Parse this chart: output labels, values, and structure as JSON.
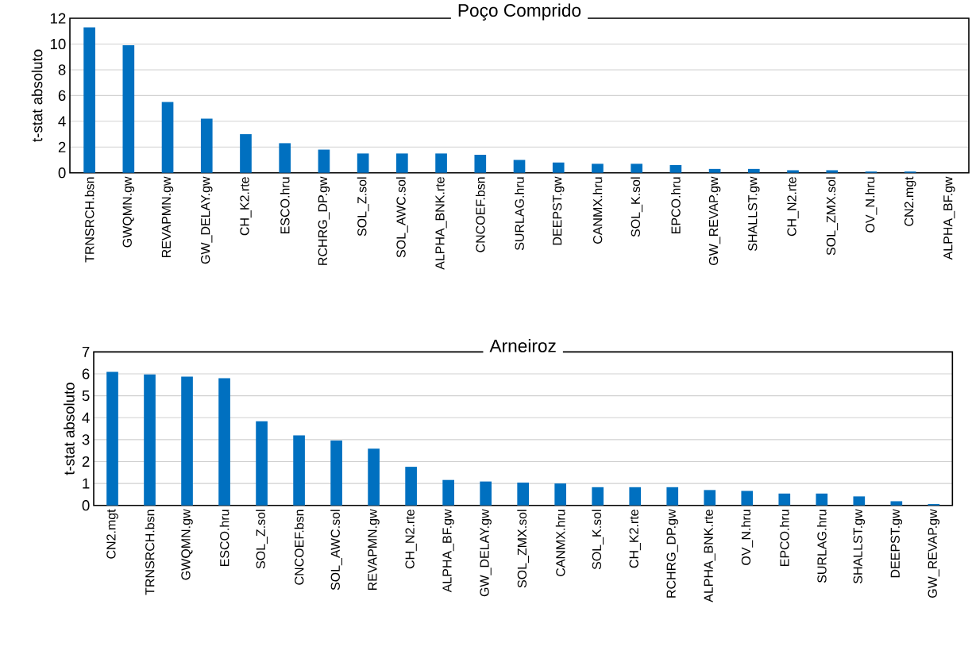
{
  "chart_data": [
    {
      "type": "bar",
      "title": "Poço Comprido",
      "ylabel": "t-stat absoluto",
      "categories": [
        "TRNSRCH.bsn",
        "GWQMN.gw",
        "REVAPMN.gw",
        "GW_DELAY.gw",
        "CH_K2.rte",
        "ESCO.hru",
        "RCHRG_DP.gw",
        "SOL_Z.sol",
        "SOL_AWC.sol",
        "ALPHA_BNK.rte",
        "CNCOEF.bsn",
        "SURLAG.hru",
        "DEEPST.gw",
        "CANMX.hru",
        "SOL_K.sol",
        "EPCO.hru",
        "GW_REVAP.gw",
        "SHALLST.gw",
        "CH_N2.rte",
        "SOL_ZMX.sol",
        "OV_N.hru",
        "CN2.mgt",
        "ALPHA_BF.gw"
      ],
      "values": [
        11.3,
        9.9,
        5.5,
        4.2,
        3.0,
        2.3,
        1.8,
        1.5,
        1.5,
        1.5,
        1.4,
        1.0,
        0.8,
        0.7,
        0.7,
        0.6,
        0.3,
        0.3,
        0.2,
        0.2,
        0.1,
        0.1,
        null
      ],
      "color": "#0070c0",
      "ylim": [
        0,
        12
      ],
      "yticks": [
        0,
        2,
        4,
        6,
        8,
        10,
        12
      ],
      "grid": "y"
    },
    {
      "type": "bar",
      "title": "Arneiroz",
      "ylabel": "t-stat absoluto",
      "categories": [
        "CN2.mgt",
        "TRNSRCH.bsn",
        "GWQMN.gw",
        "ESCO.hru",
        "SOL_Z.sol",
        "CNCOEF.bsn",
        "SOL_AWC.sol",
        "REVAPMN.gw",
        "CH_N2.rte",
        "ALPHA_BF.gw",
        "GW_DELAY.gw",
        "SOL_ZMX.sol",
        "CANMX.hru",
        "SOL_K.sol",
        "CH_K2.rte",
        "RCHRG_DP.gw",
        "ALPHA_BNK.rte",
        "OV_N.hru",
        "EPCO.hru",
        "SURLAG.hru",
        "SHALLST.gw",
        "DEEPST.gw",
        "GW_REVAP.gw"
      ],
      "values": [
        6.09,
        5.97,
        5.87,
        5.8,
        3.84,
        3.19,
        2.96,
        2.59,
        1.76,
        1.16,
        1.09,
        1.04,
        1.0,
        0.83,
        0.83,
        0.83,
        0.7,
        0.66,
        0.54,
        0.54,
        0.41,
        0.19,
        0.06
      ],
      "color": "#0070c0",
      "ylim": [
        0,
        7
      ],
      "yticks": [
        0,
        1,
        2,
        3,
        4,
        5,
        6,
        7
      ],
      "grid": "y"
    }
  ]
}
